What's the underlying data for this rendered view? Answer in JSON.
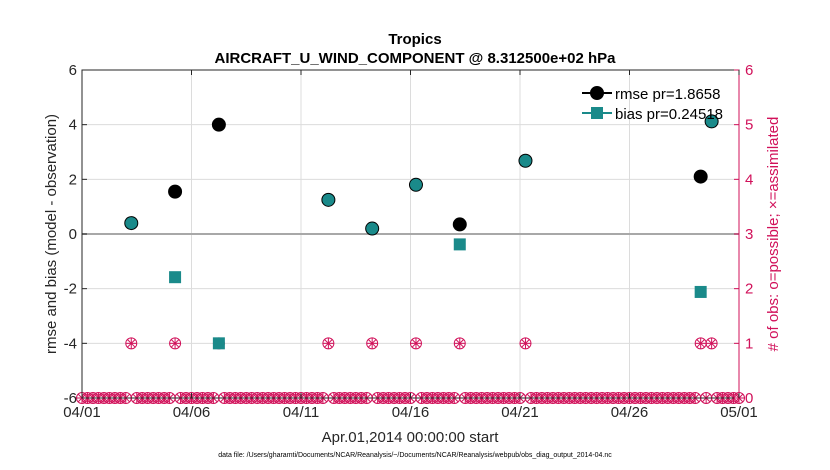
{
  "chart_data": {
    "type": "scatter",
    "title": "Tropics",
    "subtitle": "AIRCRAFT_U_WIND_COMPONENT @ 8.312500e+02 hPa",
    "xlabel": "Apr.01,2014 00:00:00 start",
    "ylabel": "rmse and bias (model - observation)",
    "ylabel_right": "# of obs: o=possible; ×=assimilated",
    "footnote": "data file: /Users/gharamti/Documents/NCAR/Reanalysis/~/Documents/NCAR/Reanalysis/webpub/obs_diag_output_2014-04.nc",
    "x_ticks": [
      1,
      6,
      11,
      16,
      21,
      26,
      31
    ],
    "x_tick_labels": [
      "04/01",
      "04/06",
      "04/11",
      "04/16",
      "04/21",
      "04/26",
      "05/01"
    ],
    "xlim": [
      1,
      31
    ],
    "ylim": [
      -6,
      6
    ],
    "y_ticks": [
      -6,
      -4,
      -2,
      0,
      2,
      4,
      6
    ],
    "ylim_right": [
      0,
      6
    ],
    "y_ticks_right": [
      0,
      1,
      2,
      3,
      4,
      5,
      6
    ],
    "grid": true,
    "legend_position": "top-right",
    "colors": {
      "rmse": "#000000",
      "bias": "#1a8a8a",
      "obs": "#d1115a"
    },
    "series": [
      {
        "name": "rmse pr=1.8658",
        "marker": "circle",
        "x": [
          3.25,
          5.25,
          7.25,
          12.25,
          14.25,
          16.25,
          18.25,
          21.25,
          29.25,
          29.75
        ],
        "y": [
          0.4,
          1.55,
          4.0,
          1.25,
          0.2,
          1.8,
          0.35,
          2.68,
          2.1,
          4.12
        ]
      },
      {
        "name": "bias pr=0.24518",
        "marker": "square",
        "x": [
          3.25,
          5.25,
          7.25,
          12.25,
          14.25,
          16.25,
          18.25,
          21.25,
          29.25,
          29.75
        ],
        "y": [
          0.4,
          -1.58,
          -4.0,
          1.25,
          0.2,
          1.8,
          -0.38,
          2.68,
          -2.12,
          4.12
        ]
      }
    ],
    "obs_count": {
      "x_one": [
        3.25,
        5.25,
        7.25,
        12.25,
        14.25,
        16.25,
        18.25,
        21.25,
        29.25,
        29.75
      ],
      "value_one": 1,
      "zero_step_days": 0.25,
      "value_zero": 0
    }
  }
}
